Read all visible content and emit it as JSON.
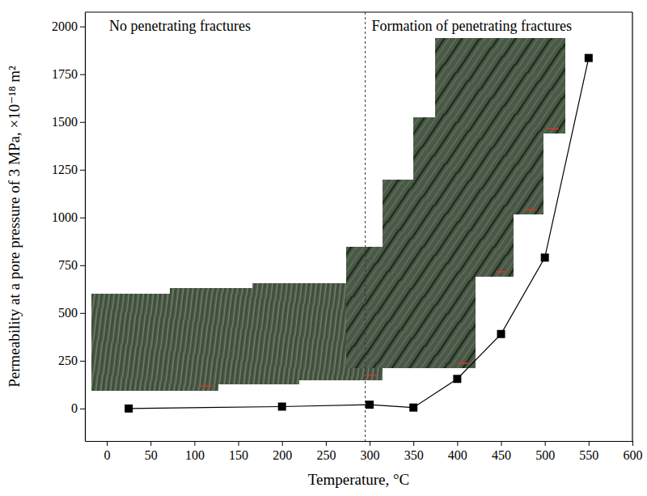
{
  "chart_data": {
    "type": "line",
    "x_label": "Temperature, °C",
    "y_label": "Permeability at a pore pressure of 3 MPa, ×10⁻¹⁸ m²",
    "annotations": [
      "No penetrating fractures",
      "Formation of penetrating fractures"
    ],
    "divider_x": 295,
    "x": [
      25,
      200,
      300,
      350,
      400,
      450,
      500,
      550
    ],
    "series": [
      {
        "color": "#000000",
        "marker": "square",
        "line_style": "solid",
        "values": [
          0,
          10,
          20,
          5,
          155,
          390,
          790,
          1835
        ]
      }
    ],
    "xlim": [
      -25,
      600
    ],
    "ylim": [
      -170,
      2075
    ],
    "xticks": [
      0,
      50,
      100,
      150,
      200,
      250,
      300,
      350,
      400,
      450,
      500,
      550,
      600
    ],
    "yticks": [
      0,
      250,
      500,
      750,
      1000,
      1250,
      1500,
      1750,
      2000
    ],
    "grid": false
  }
}
